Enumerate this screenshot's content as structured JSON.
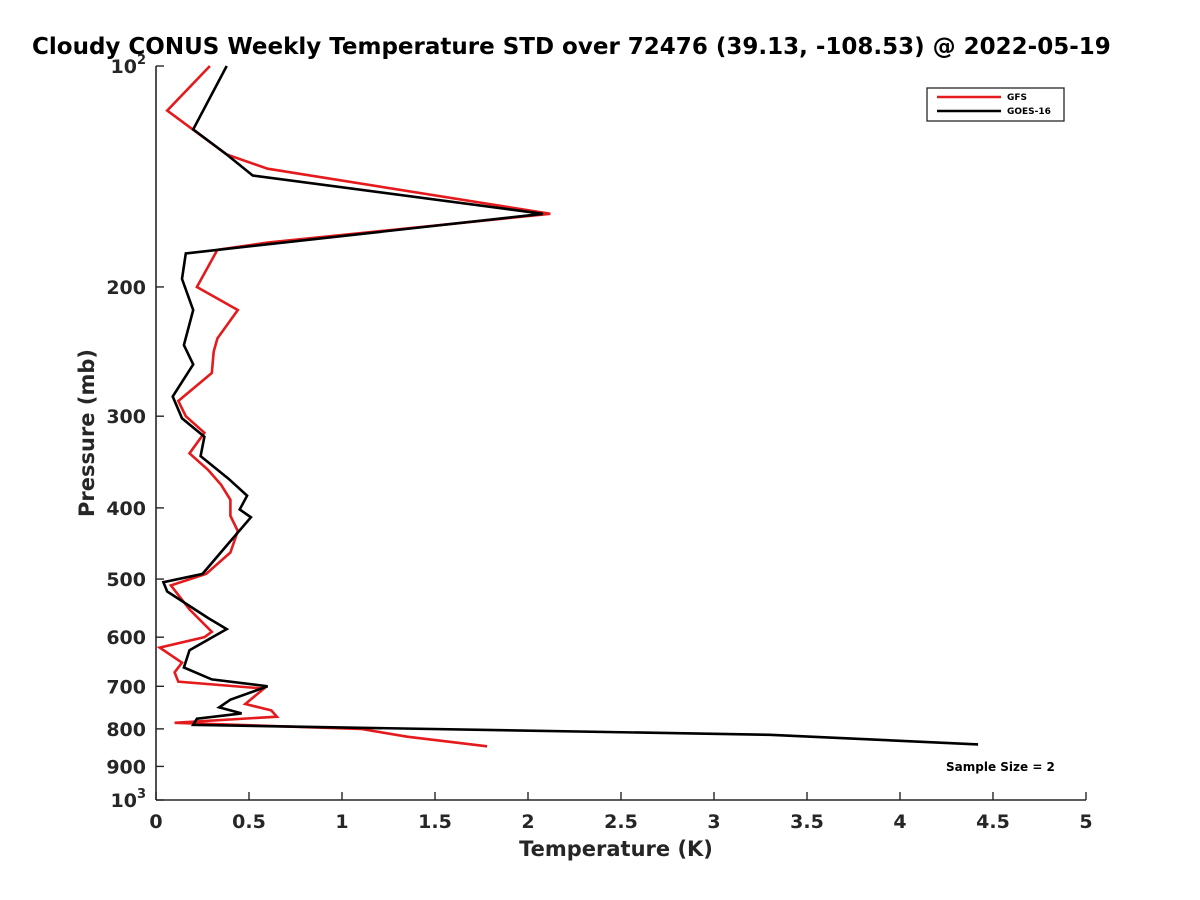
{
  "chart_data": {
    "type": "line",
    "title": "Cloudy CONUS Weekly Temperature STD over 72476 (39.13, -108.53) @ 2022-05-19",
    "xlabel": "Temperature (K)",
    "ylabel": "Pressure (mb)",
    "xlim": [
      0,
      5
    ],
    "ylim": [
      100,
      1000
    ],
    "yscale": "log",
    "y_reversed": true,
    "x_ticks": [
      0,
      0.5,
      1,
      1.5,
      2,
      2.5,
      3,
      3.5,
      4,
      4.5,
      5
    ],
    "x_tick_labels": [
      "0",
      "0.5",
      "1",
      "1.5",
      "2",
      "2.5",
      "3",
      "3.5",
      "4",
      "4.5",
      "5"
    ],
    "y_ticks": [
      200,
      300,
      400,
      500,
      600,
      700,
      800,
      900
    ],
    "y_tick_labels": [
      "200",
      "300",
      "400",
      "500",
      "600",
      "700",
      "800",
      "900"
    ],
    "y_decade_ticks": [
      {
        "value": 100,
        "base": "10",
        "exp": "2"
      },
      {
        "value": 1000,
        "base": "10",
        "exp": "3"
      }
    ],
    "grid": false,
    "legend_position": "top-right",
    "series": [
      {
        "name": "GFS",
        "color": "#e41a1c",
        "points": [
          [
            0.29,
            100
          ],
          [
            0.06,
            115
          ],
          [
            0.38,
            132
          ],
          [
            0.6,
            138
          ],
          [
            2.12,
            159
          ],
          [
            0.6,
            174
          ],
          [
            0.33,
            178
          ],
          [
            0.22,
            200
          ],
          [
            0.44,
            215
          ],
          [
            0.33,
            235
          ],
          [
            0.31,
            245
          ],
          [
            0.3,
            262
          ],
          [
            0.12,
            286
          ],
          [
            0.16,
            300
          ],
          [
            0.26,
            316
          ],
          [
            0.18,
            337
          ],
          [
            0.28,
            355
          ],
          [
            0.35,
            372
          ],
          [
            0.4,
            390
          ],
          [
            0.4,
            400
          ],
          [
            0.4,
            410
          ],
          [
            0.44,
            430
          ],
          [
            0.4,
            460
          ],
          [
            0.27,
            492
          ],
          [
            0.08,
            510
          ],
          [
            0.18,
            550
          ],
          [
            0.3,
            590
          ],
          [
            0.26,
            600
          ],
          [
            0.02,
            620
          ],
          [
            0.14,
            650
          ],
          [
            0.1,
            670
          ],
          [
            0.12,
            690
          ],
          [
            0.58,
            705
          ],
          [
            0.48,
            740
          ],
          [
            0.62,
            755
          ],
          [
            0.65,
            770
          ],
          [
            0.1,
            785
          ],
          [
            1.1,
            800
          ],
          [
            1.35,
            820
          ],
          [
            1.78,
            845
          ]
        ]
      },
      {
        "name": "GOES-16",
        "color": "#000000",
        "points": [
          [
            0.38,
            100
          ],
          [
            0.2,
            122
          ],
          [
            0.38,
            132
          ],
          [
            0.52,
            141
          ],
          [
            2.08,
            159
          ],
          [
            0.16,
            180
          ],
          [
            0.14,
            195
          ],
          [
            0.2,
            215
          ],
          [
            0.15,
            240
          ],
          [
            0.2,
            255
          ],
          [
            0.09,
            282
          ],
          [
            0.14,
            302
          ],
          [
            0.26,
            320
          ],
          [
            0.24,
            340
          ],
          [
            0.39,
            365
          ],
          [
            0.49,
            385
          ],
          [
            0.45,
            402
          ],
          [
            0.51,
            412
          ],
          [
            0.38,
            450
          ],
          [
            0.25,
            492
          ],
          [
            0.04,
            505
          ],
          [
            0.06,
            520
          ],
          [
            0.28,
            565
          ],
          [
            0.38,
            585
          ],
          [
            0.18,
            625
          ],
          [
            0.15,
            660
          ],
          [
            0.3,
            685
          ],
          [
            0.6,
            700
          ],
          [
            0.4,
            730
          ],
          [
            0.34,
            748
          ],
          [
            0.46,
            762
          ],
          [
            0.22,
            775
          ],
          [
            0.2,
            790
          ],
          [
            3.3,
            815
          ],
          [
            4.42,
            840
          ]
        ]
      }
    ],
    "legend": [
      "GFS",
      "GOES-16"
    ],
    "annotation": "Sample Size = 2"
  }
}
